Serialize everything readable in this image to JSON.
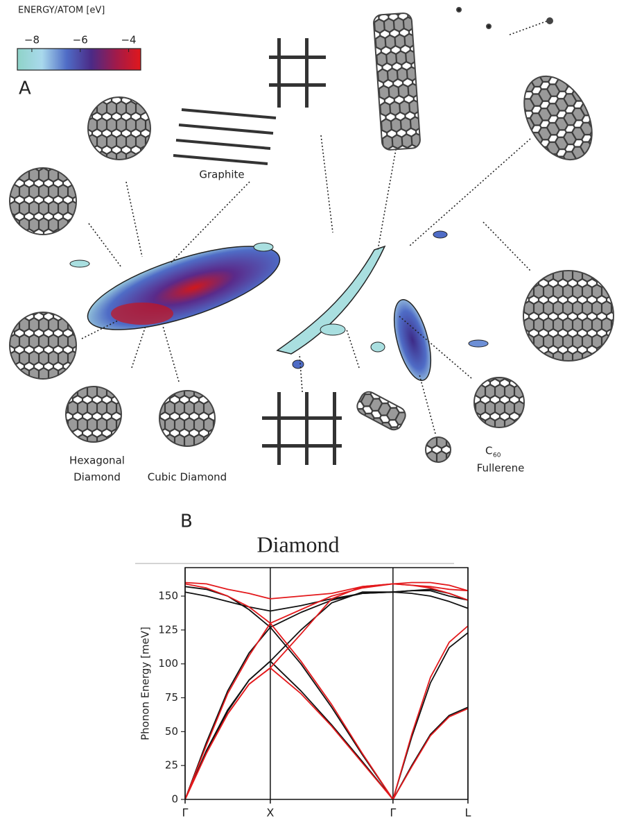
{
  "chart_data": [
    {
      "type": "map",
      "panel_label": "A",
      "colorbar": {
        "label": "ENERGY/ATOM  [eV]",
        "lim": [
          -8.6,
          -3.5
        ],
        "ticks": [
          {
            "value": -8,
            "label": "−8"
          },
          {
            "value": -6,
            "label": "−6"
          },
          {
            "value": -4,
            "label": "−4"
          }
        ],
        "colors": [
          "#8fd3c8",
          "#a9d9ec",
          "#4f6cc6",
          "#4b2a86",
          "#a11a4a",
          "#e0181c"
        ]
      },
      "labels": [
        "Graphite",
        "Hexagonal",
        "Diamond",
        "Cubic Diamond",
        "C",
        "60",
        "Fullerene"
      ]
    },
    {
      "type": "line",
      "panel_label": "B",
      "title": "Diamond",
      "y_label": "Phonon Energy [meV]",
      "x": [
        0,
        0.25,
        0.5,
        0.75,
        1,
        1.36,
        1.72,
        2.08,
        2.44,
        2.66,
        2.88,
        3.1,
        3.32
      ],
      "xlim": [
        0,
        3.32
      ],
      "xticks": [
        {
          "value": 0,
          "label": "Γ"
        },
        {
          "value": 1,
          "label": "X"
        },
        {
          "value": 2.44,
          "label": "Γ"
        },
        {
          "value": 3.32,
          "label": "L"
        }
      ],
      "ylim": [
        0,
        171
      ],
      "yticks": [
        0,
        25,
        50,
        75,
        100,
        125,
        150
      ],
      "series": [
        {
          "color": "#111111",
          "values": [
            0,
            36,
            66,
            88,
            102,
            125,
            145,
            153,
            153,
            154,
            154,
            150,
            147
          ]
        },
        {
          "color": "#111111",
          "values": [
            0,
            42,
            80,
            108,
            127,
            100,
            68,
            33,
            0,
            46,
            86,
            112,
            123
          ]
        },
        {
          "color": "#111111",
          "values": [
            153,
            150,
            146,
            142,
            139,
            143,
            148,
            152,
            153,
            152,
            150,
            146,
            141
          ]
        },
        {
          "color": "#111111",
          "values": [
            157,
            155,
            150,
            140,
            127,
            138,
            147,
            152,
            153,
            154,
            155,
            152,
            147
          ]
        },
        {
          "color": "#111111",
          "values": [
            0,
            35,
            65,
            88,
            102,
            80,
            55,
            28,
            0,
            25,
            48,
            62,
            68
          ]
        },
        {
          "color": "#e3191c",
          "values": [
            0,
            34,
            63,
            85,
            97,
            122,
            148,
            157,
            159,
            160,
            160,
            158,
            154
          ]
        },
        {
          "color": "#e3191c",
          "values": [
            0,
            40,
            78,
            106,
            130,
            102,
            70,
            34,
            0,
            48,
            90,
            116,
            128
          ]
        },
        {
          "color": "#e3191c",
          "values": [
            159,
            156,
            150,
            142,
            130,
            140,
            150,
            156,
            159,
            158,
            156,
            152,
            147
          ]
        },
        {
          "color": "#e3191c",
          "values": [
            160,
            159,
            155,
            152,
            148,
            150,
            152,
            157,
            159,
            158,
            157,
            155,
            154
          ]
        },
        {
          "color": "#e3191c",
          "values": [
            0,
            34,
            63,
            85,
            97,
            78,
            54,
            27,
            0,
            24,
            47,
            61,
            67
          ]
        }
      ]
    }
  ]
}
